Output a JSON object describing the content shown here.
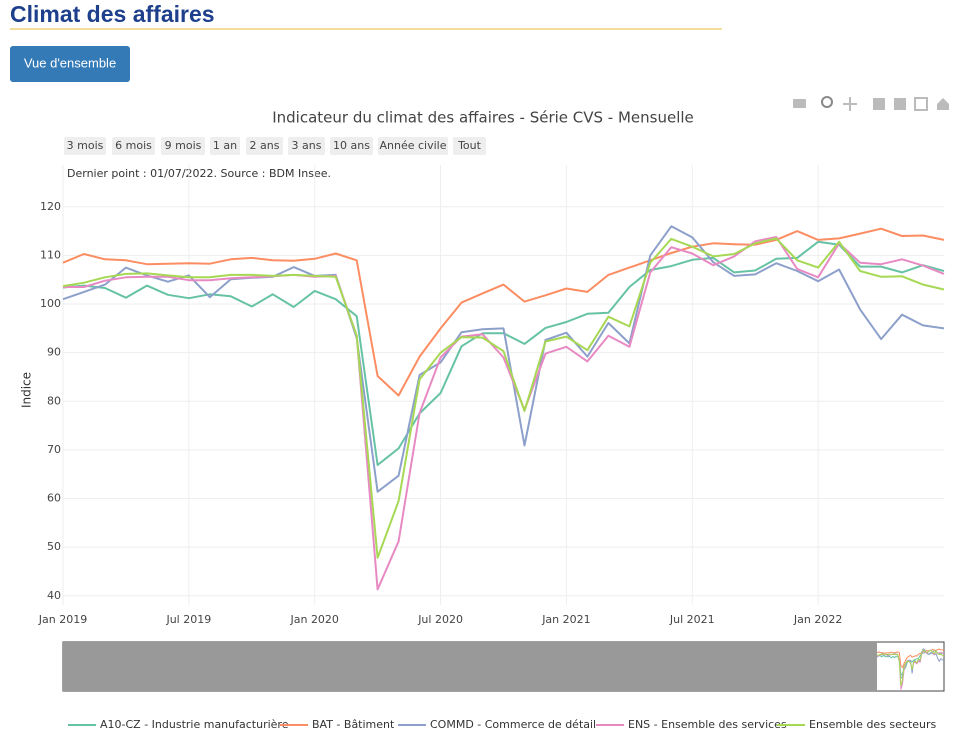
{
  "header": {
    "title": "Climat des affaires",
    "button": "Vue d'ensemble"
  },
  "range_buttons": [
    "3 mois",
    "6 mois",
    "9 mois",
    "1 an",
    "2 ans",
    "3 ans",
    "10 ans",
    "Année civile",
    "Tout"
  ],
  "chart_data": {
    "type": "line",
    "title": "Indicateur du climat des affaires - Série CVS - Mensuelle",
    "annotation": "Dernier point : 01/07/2022. Source : BDM Insee.",
    "y_label": "Indice",
    "x": [
      "2019-01",
      "2019-02",
      "2019-03",
      "2019-04",
      "2019-05",
      "2019-06",
      "2019-07",
      "2019-08",
      "2019-09",
      "2019-10",
      "2019-11",
      "2019-12",
      "2020-01",
      "2020-02",
      "2020-03",
      "2020-04",
      "2020-05",
      "2020-06",
      "2020-07",
      "2020-08",
      "2020-09",
      "2020-10",
      "2020-11",
      "2020-12",
      "2021-01",
      "2021-02",
      "2021-03",
      "2021-04",
      "2021-05",
      "2021-06",
      "2021-07",
      "2021-08",
      "2021-09",
      "2021-10",
      "2021-11",
      "2021-12",
      "2022-01",
      "2022-02",
      "2022-03",
      "2022-04",
      "2022-05",
      "2022-06",
      "2022-07"
    ],
    "xlim": [
      "2019-01",
      "2022-07"
    ],
    "xticks": [
      {
        "value": "2019-01",
        "label": "Jan 2019"
      },
      {
        "value": "2019-07",
        "label": "Jul 2019"
      },
      {
        "value": "2020-01",
        "label": "Jan 2020"
      },
      {
        "value": "2020-07",
        "label": "Jul 2020"
      },
      {
        "value": "2021-01",
        "label": "Jan 2021"
      },
      {
        "value": "2021-07",
        "label": "Jul 2021"
      },
      {
        "value": "2022-01",
        "label": "Jan 2022"
      }
    ],
    "ylim": [
      38.1,
      128.6
    ],
    "yticks": [
      40,
      50,
      60,
      70,
      80,
      90,
      100,
      110,
      120
    ],
    "grid": true,
    "legend": "bottom",
    "series": [
      {
        "name": "A10-CZ - Industrie manufacturière",
        "color": "#66c2a5",
        "values": [
          103.4,
          103.8,
          103.3,
          101.3,
          103.8,
          101.9,
          101.2,
          102,
          101.6,
          99.5,
          102,
          99.4,
          102.7,
          101,
          97.5,
          66.9,
          70.3,
          77.5,
          81.7,
          91.3,
          94,
          94,
          91.8,
          95.1,
          96.3,
          98,
          98.2,
          103.5,
          107,
          107.8,
          109.1,
          109.5,
          106.5,
          106.9,
          109.3,
          109.5,
          112.8,
          112.2,
          107.7,
          107.7,
          106.5,
          108,
          106.8
        ]
      },
      {
        "name": "BAT - Bâtiment",
        "color": "#fc8d62",
        "values": [
          108.5,
          110.3,
          109.2,
          109,
          108.2,
          108.3,
          108.4,
          108.3,
          109.2,
          109.5,
          109,
          108.9,
          109.3,
          110.4,
          109,
          85.2,
          81.2,
          89.2,
          95,
          100.3,
          102.2,
          104,
          100.5,
          101.8,
          103.2,
          102.5,
          106,
          107.5,
          109,
          110.5,
          111.8,
          112.5,
          112.3,
          112.2,
          113.2,
          115,
          113.2,
          113.5,
          114.5,
          115.5,
          114,
          114.1,
          113.2
        ]
      },
      {
        "name": "COMMD - Commerce de détail",
        "color": "#8da0cb",
        "values": [
          101,
          102.5,
          104,
          107.5,
          105.9,
          104.6,
          105.9,
          101.4,
          105.1,
          105.4,
          105.6,
          107.6,
          105.8,
          106,
          93,
          61.4,
          64.7,
          85.4,
          88,
          94.2,
          94.8,
          95,
          70.9,
          92.6,
          94.1,
          89.2,
          96.1,
          91.9,
          110,
          116,
          113.7,
          108.6,
          105.8,
          106.1,
          108.4,
          106.8,
          104.7,
          107.1,
          98.9,
          92.8,
          97.8,
          95.6,
          95
        ]
      },
      {
        "name": "ENS - Ensemble des services",
        "color": "#e78ac3",
        "values": [
          103.5,
          103.5,
          104.8,
          105.5,
          105.6,
          105.6,
          104.9,
          104.9,
          105.3,
          105.5,
          105.7,
          106,
          105.6,
          105.8,
          93.5,
          41.3,
          51.2,
          77.6,
          89,
          93.3,
          93.8,
          89,
          78.2,
          89.8,
          91.2,
          88.2,
          93.5,
          91.2,
          106.5,
          111.7,
          110.4,
          108,
          109.8,
          112.9,
          113.8,
          107.2,
          105.5,
          112.5,
          108.5,
          108.2,
          109.2,
          107.9,
          106.2
        ]
      },
      {
        "name": "Ensemble des secteurs",
        "color": "#a6d854",
        "values": [
          103.7,
          104.4,
          105.5,
          106.2,
          106.3,
          105.9,
          105.5,
          105.5,
          106,
          106,
          105.8,
          106,
          105.8,
          105.6,
          93.5,
          47.8,
          59.5,
          84.5,
          90,
          93.2,
          93.1,
          90.3,
          78,
          92.3,
          93.3,
          90.5,
          97.4,
          95.4,
          108.5,
          113.4,
          111.8,
          109.8,
          110.3,
          112.5,
          113.5,
          109,
          107.5,
          112.8,
          106.8,
          105.6,
          105.7,
          104,
          103
        ]
      }
    ]
  }
}
